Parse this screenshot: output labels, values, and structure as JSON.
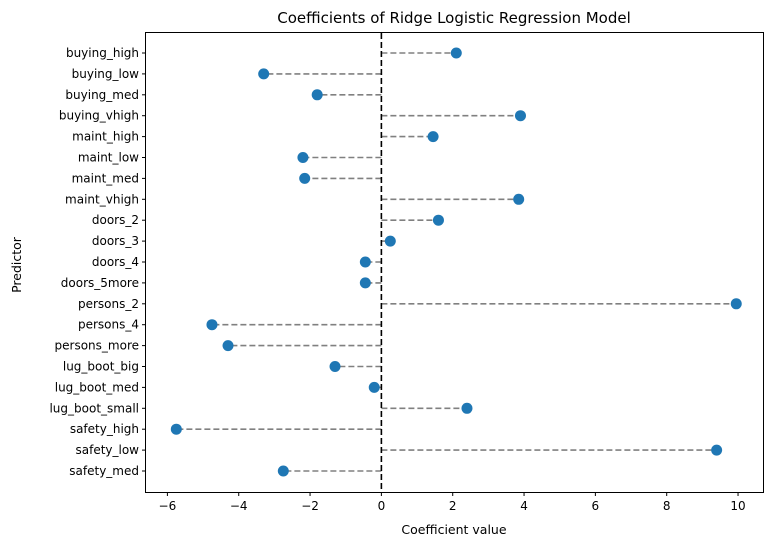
{
  "chart_data": {
    "type": "scatter",
    "title": "Coefficients of Ridge Logistic Regression Model",
    "xlabel": "Coefficient value",
    "ylabel": "Predictor",
    "xlim": [
      -6.6,
      10.7
    ],
    "xticks": [
      -6,
      -4,
      -2,
      0,
      2,
      4,
      6,
      8,
      10
    ],
    "xtick_labels": [
      "−6",
      "−4",
      "−2",
      "0",
      "2",
      "4",
      "6",
      "8",
      "10"
    ],
    "reference_line_x": 0,
    "grid": false,
    "legend": "none",
    "point_color": "#1f77b4",
    "stem_color": "#808080",
    "categories": [
      "buying_high",
      "buying_low",
      "buying_med",
      "buying_vhigh",
      "maint_high",
      "maint_low",
      "maint_med",
      "maint_vhigh",
      "doors_2",
      "doors_3",
      "doors_4",
      "doors_5more",
      "persons_2",
      "persons_4",
      "persons_more",
      "lug_boot_big",
      "lug_boot_med",
      "lug_boot_small",
      "safety_high",
      "safety_low",
      "safety_med"
    ],
    "values": [
      2.1,
      -3.3,
      -1.8,
      3.9,
      1.45,
      -2.2,
      -2.15,
      3.85,
      1.6,
      0.25,
      -0.45,
      -0.45,
      9.95,
      -4.75,
      -4.3,
      -1.3,
      -0.2,
      2.4,
      -5.75,
      9.4,
      -2.75
    ]
  }
}
